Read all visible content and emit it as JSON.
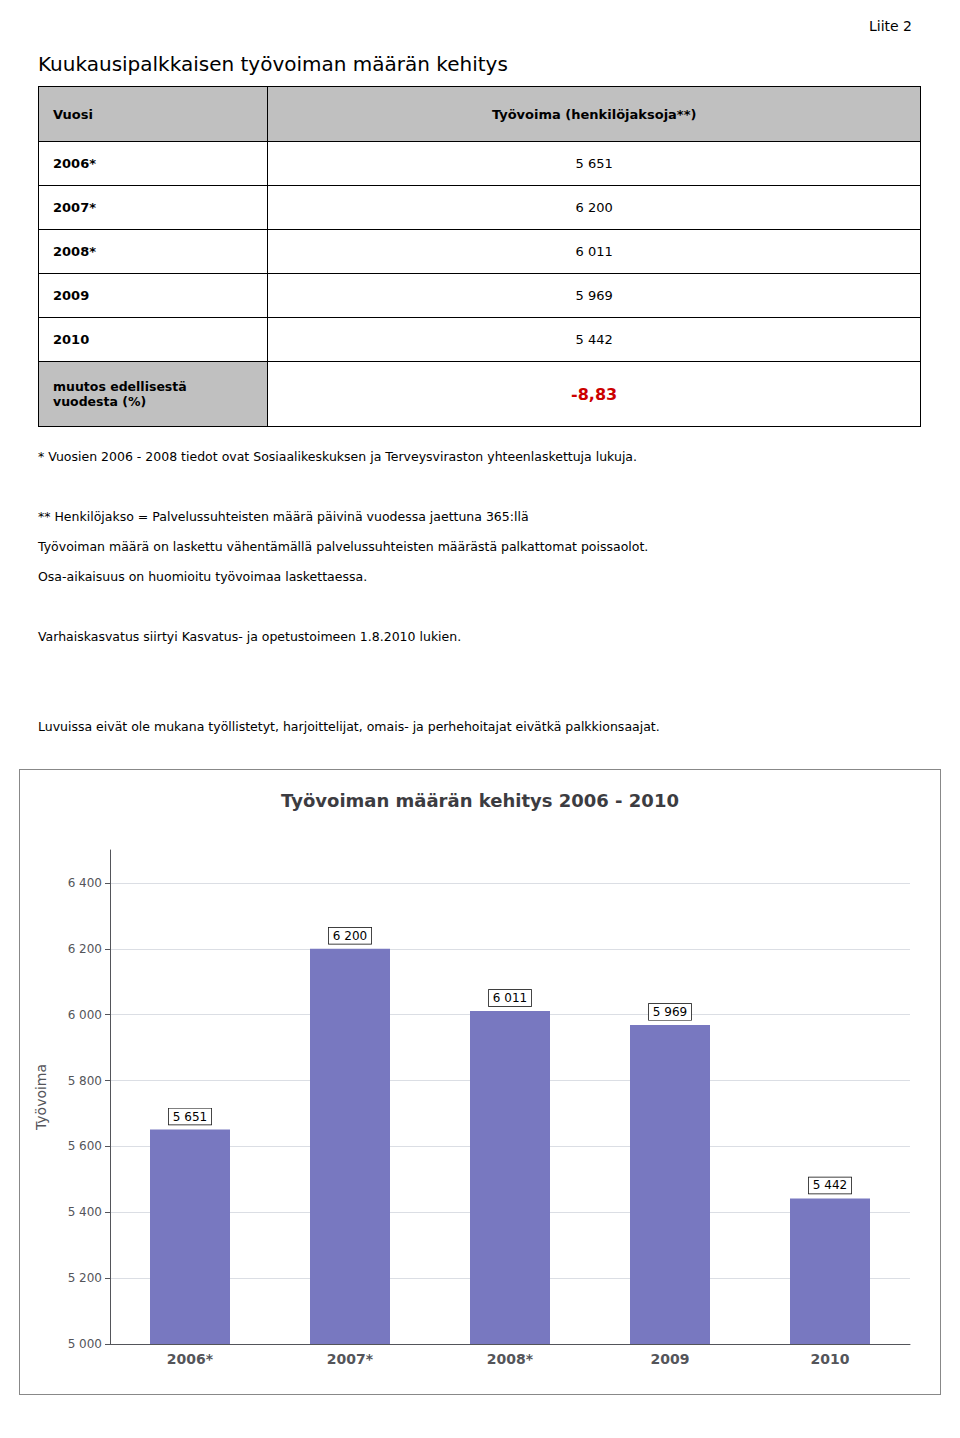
{
  "page_label": "Liite 2",
  "main_title": "Kuukausipalkkaisen työvoiman määrän kehitys",
  "table": {
    "header": [
      "Vuosi",
      "Työvoima (henkilöjaksoja**)"
    ],
    "rows": [
      {
        "label": "2006*",
        "value": "5 651"
      },
      {
        "label": "2007*",
        "value": "6 200"
      },
      {
        "label": "2008*",
        "value": "6 011"
      },
      {
        "label": "2009",
        "value": "5 969"
      },
      {
        "label": "2010",
        "value": "5 442"
      },
      {
        "label": "muutos edellisestä\nvuodesta (%)",
        "value": "-8,83",
        "color": "#CC0000"
      }
    ]
  },
  "footnotes": [
    "* Vuosien 2006 - 2008 tiedot ovat Sosiaalikeskuksen ja Terveysviraston yhteenlaskettuja lukuja.",
    "** Henkilöjakso = Palvelussuhteisten määrä päivinä vuodessa jaettuna 365:llä",
    "Työvoiman määrä on laskettu vähentämällä palvelussuhteisten määrästä palkattomat poissaolot.",
    "Osa-aikaisuus on huomioitu työvoimaa laskettaessa.",
    "Varhaiskasvatus siirtyi Kasvatus- ja opetustoimeen 1.8.2010 lukien.",
    "Luvuissa eivät ole mukana työllistetyt, harjoittelijat, omais- ja perhehoitajat eivätkä palkkionsaajat."
  ],
  "chart_data": {
    "type": "bar",
    "title": "Työvoiman määrän kehitys 2006 - 2010",
    "ylabel": "Työvoima",
    "categories": [
      "2006*",
      "2007*",
      "2008*",
      "2009",
      "2010"
    ],
    "values": [
      5651,
      6200,
      6011,
      5969,
      5442
    ],
    "value_labels": [
      "5 651",
      "6 200",
      "6 011",
      "5 969",
      "5 442"
    ],
    "data_labels": true,
    "color": "#7878C0",
    "ylim": [
      5000,
      6500
    ],
    "yticks": [
      {
        "value": 5000,
        "label": "5 000"
      },
      {
        "value": 5200,
        "label": "5 200"
      },
      {
        "value": 5400,
        "label": "5 400"
      },
      {
        "value": 5600,
        "label": "5 600"
      },
      {
        "value": 5800,
        "label": "5 800"
      },
      {
        "value": 6000,
        "label": "6 000"
      },
      {
        "value": 6200,
        "label": "6 200"
      },
      {
        "value": 6400,
        "label": "6 400"
      }
    ],
    "grid": true
  }
}
